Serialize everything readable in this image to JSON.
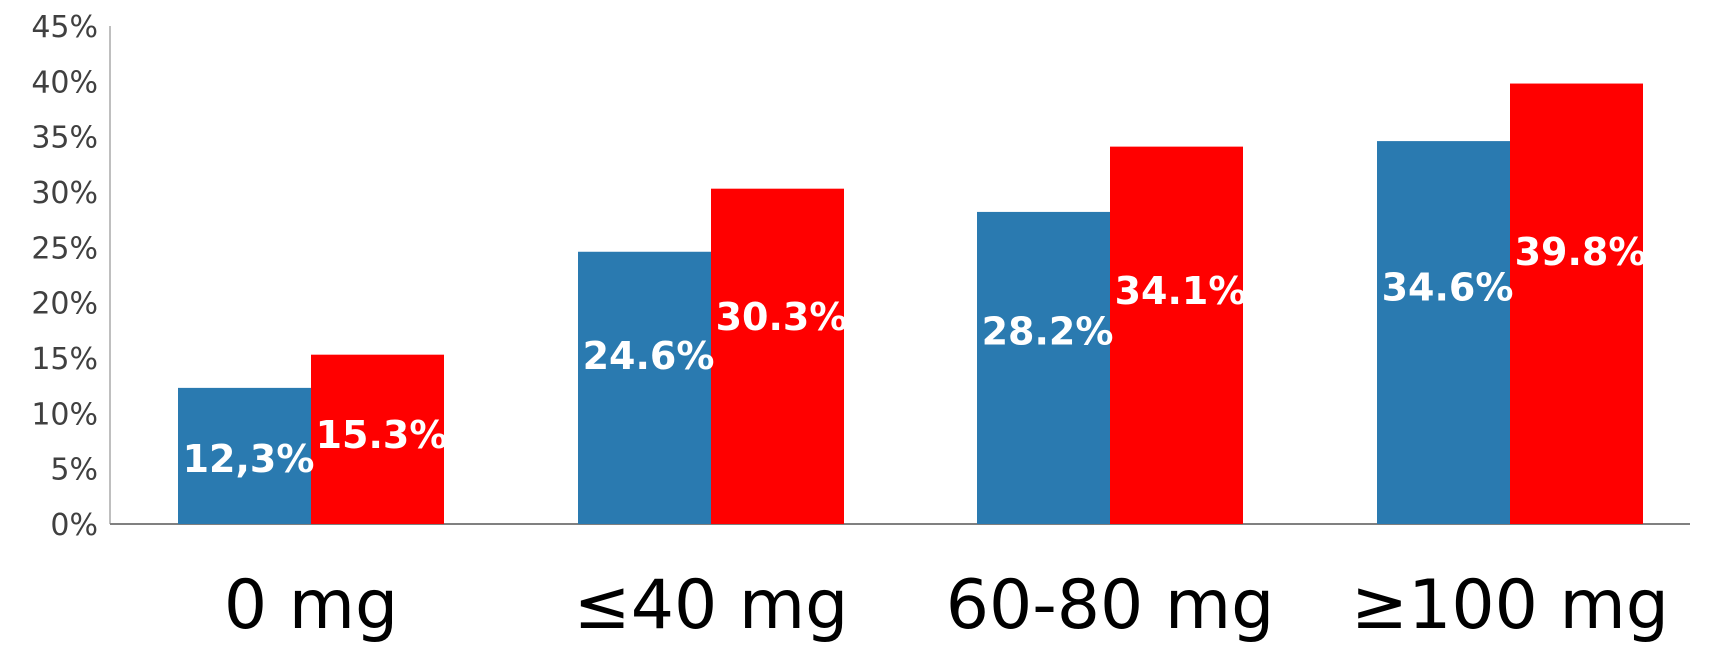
{
  "chart_data": {
    "type": "bar",
    "categories": [
      "0 mg",
      "≤40 mg",
      "60-80 mg",
      "≥100 mg"
    ],
    "series": [
      {
        "color": "#2a7ab0",
        "values": [
          12.3,
          24.6,
          28.2,
          34.6
        ],
        "labels": [
          "12,3%",
          "24.6%",
          "28.2%",
          "34.6%"
        ]
      },
      {
        "color": "#ff0000",
        "values": [
          15.3,
          30.3,
          34.1,
          39.8
        ],
        "labels": [
          "15.3%",
          "30.3%",
          "34.1%",
          "39.8%"
        ]
      }
    ],
    "ylim": [
      0,
      45
    ],
    "y_ticks": [
      "0%",
      "5%",
      "10%",
      "15%",
      "20%",
      "25%",
      "30%",
      "35%",
      "40%",
      "45%"
    ],
    "grid": false,
    "legend": "none"
  }
}
